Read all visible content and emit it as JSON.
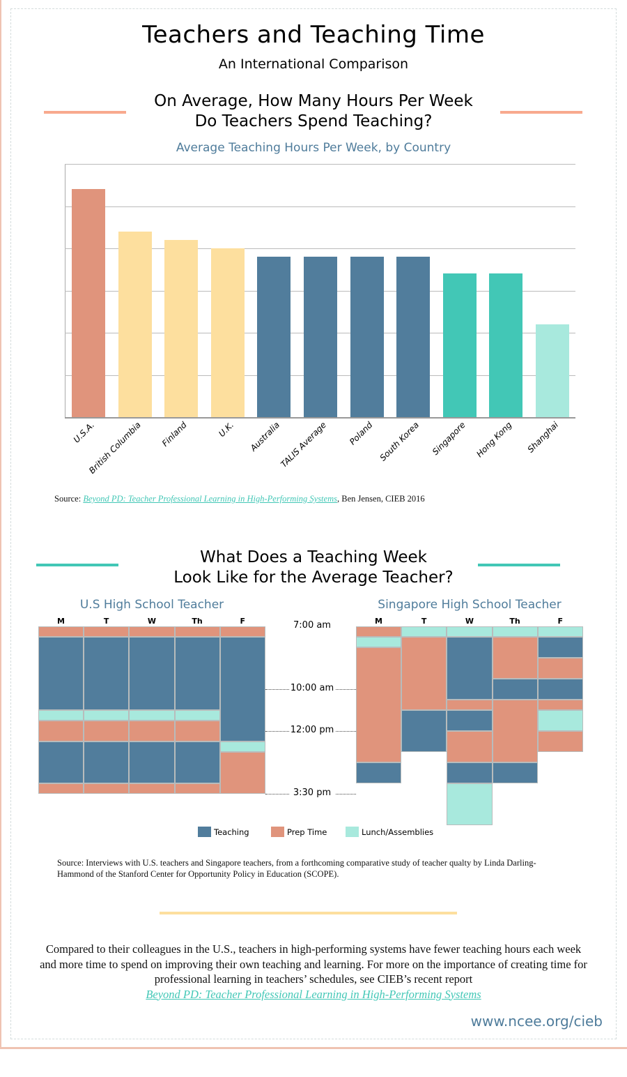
{
  "header": {
    "title": "Teachers and Teaching Time",
    "subtitle": "An International Comparison"
  },
  "section1": {
    "question_line1": "On Average, How Many Hours Per Week",
    "question_line2": "Do Teachers Spend Teaching?"
  },
  "colors": {
    "teaching": "#517d9c",
    "prep": "#e0947c",
    "lunch": "#a8e9dd",
    "usa": "#e0947c",
    "yellow": "#fddf9e",
    "teal": "#42c7b6",
    "title_blue": "#4f7c9b",
    "rule_salmon": "#f8a98e",
    "rule_teal": "#42c7b6",
    "rule_yellow": "#fddf9e"
  },
  "chart_data": [
    {
      "type": "bar",
      "title": "Average Teaching Hours Per Week, by Country",
      "categories": [
        "U.S.A.",
        "British Columbia",
        "Finland",
        "U.K.",
        "Australia",
        "TALIS Average",
        "Poland",
        "South Korea",
        "Singapore",
        "Hong Kong",
        "Shanghai"
      ],
      "values": [
        27,
        22,
        21,
        20,
        19,
        19,
        19,
        19,
        17,
        17,
        11
      ],
      "bar_colors": [
        "#e0947c",
        "#fddf9e",
        "#fddf9e",
        "#fddf9e",
        "#517d9c",
        "#517d9c",
        "#517d9c",
        "#517d9c",
        "#42c7b6",
        "#42c7b6",
        "#a8e9dd"
      ],
      "ylim": [
        0,
        30
      ],
      "yticks": [
        "0",
        "5",
        "10",
        "15",
        "20",
        "25",
        "30"
      ],
      "grid": true
    },
    {
      "type": "table",
      "title": "What Does a Teaching Week Look Like for the Average Teacher?",
      "unit": "half-hour slots from 7:00 am",
      "legend": [
        {
          "key": "teaching",
          "label": "Teaching"
        },
        {
          "key": "prep",
          "label": "Prep Time"
        },
        {
          "key": "lunch",
          "label": "Lunch/Assemblies"
        }
      ],
      "time_labels": [
        {
          "slot": 0,
          "label": "7:00 am"
        },
        {
          "slot": 6,
          "label": "10:00 am"
        },
        {
          "slot": 10,
          "label": "12:00 pm"
        },
        {
          "slot": 16,
          "label": "3:30 pm"
        }
      ],
      "days": [
        "M",
        "T",
        "W",
        "Th",
        "F"
      ],
      "schedules": [
        {
          "name": "U.S High School Teacher",
          "days": [
            [
              [
                "prep",
                1
              ],
              [
                "teaching",
                7
              ],
              [
                "lunch",
                1
              ],
              [
                "prep",
                2
              ],
              [
                "teaching",
                4
              ],
              [
                "prep",
                1
              ]
            ],
            [
              [
                "prep",
                1
              ],
              [
                "teaching",
                7
              ],
              [
                "lunch",
                1
              ],
              [
                "prep",
                2
              ],
              [
                "teaching",
                4
              ],
              [
                "prep",
                1
              ]
            ],
            [
              [
                "prep",
                1
              ],
              [
                "teaching",
                7
              ],
              [
                "lunch",
                1
              ],
              [
                "prep",
                2
              ],
              [
                "teaching",
                4
              ],
              [
                "prep",
                1
              ]
            ],
            [
              [
                "prep",
                1
              ],
              [
                "teaching",
                7
              ],
              [
                "lunch",
                1
              ],
              [
                "prep",
                2
              ],
              [
                "teaching",
                4
              ],
              [
                "prep",
                1
              ]
            ],
            [
              [
                "prep",
                1
              ],
              [
                "teaching",
                10
              ],
              [
                "lunch",
                1
              ],
              [
                "prep",
                4
              ]
            ]
          ]
        },
        {
          "name": "Singapore High School Teacher",
          "days": [
            [
              [
                "prep",
                1
              ],
              [
                "lunch",
                1
              ],
              [
                "prep",
                11
              ],
              [
                "teaching",
                2
              ]
            ],
            [
              [
                "lunch",
                1
              ],
              [
                "prep",
                7
              ],
              [
                "teaching",
                4
              ]
            ],
            [
              [
                "lunch",
                1
              ],
              [
                "teaching",
                6
              ],
              [
                "prep",
                1
              ],
              [
                "teaching",
                2
              ],
              [
                "prep",
                3
              ],
              [
                "teaching",
                2
              ],
              [
                "lunch",
                4
              ]
            ],
            [
              [
                "lunch",
                1
              ],
              [
                "prep",
                4
              ],
              [
                "teaching",
                2
              ],
              [
                "prep",
                6
              ],
              [
                "teaching",
                2
              ]
            ],
            [
              [
                "lunch",
                1
              ],
              [
                "teaching",
                2
              ],
              [
                "prep",
                2
              ],
              [
                "teaching",
                2
              ],
              [
                "prep",
                1
              ],
              [
                "lunch",
                2
              ],
              [
                "prep",
                2
              ]
            ]
          ]
        }
      ]
    }
  ],
  "source1": {
    "prefix": "Source: ",
    "link": "Beyond PD: Teacher Professional Learning in High-Performing Systems",
    "suffix": ", Ben Jensen, CIEB 2016"
  },
  "section2": {
    "question_line1": "What Does a Teaching Week",
    "question_line2": "Look Like for the Average Teacher?"
  },
  "source2": "Source: Interviews with U.S. teachers and Singapore teachers, from a forthcoming comparative study of teacher qualty by Linda Darling-Hammond of the Stanford Center for Opportunity Policy in Education (SCOPE).",
  "conclusion": {
    "text": "Compared to their colleagues in the U.S., teachers in high-performing systems have fewer teaching hours each week and more time to spend on improving their own teaching and learning. For more on the importance of creating time for professional learning in teachers’ schedules, see CIEB’s recent report",
    "link": "Beyond PD: Teacher Professional Learning in High-Performing Systems"
  },
  "footer": {
    "url": "www.ncee.org/cieb"
  }
}
